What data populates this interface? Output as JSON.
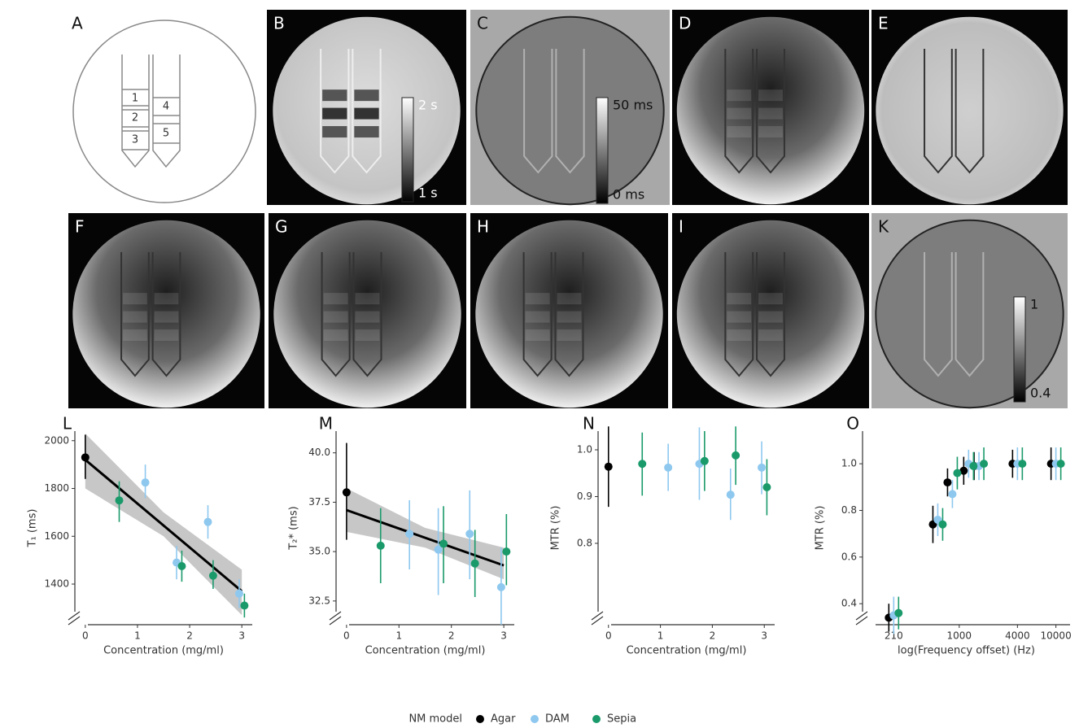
{
  "images": [
    {
      "label": "A"
    },
    {
      "label": "B",
      "colorbar": [
        "2 s",
        "1 s"
      ]
    },
    {
      "label": "C",
      "colorbar": [
        "50 ms",
        "0 ms"
      ]
    },
    {
      "label": "D"
    },
    {
      "label": "E"
    },
    {
      "label": "F"
    },
    {
      "label": "G"
    },
    {
      "label": "H"
    },
    {
      "label": "I"
    },
    {
      "label": "K",
      "colorbar": [
        "1",
        "0.4"
      ]
    }
  ],
  "diagram": {
    "tube_labels": [
      "1",
      "2",
      "3",
      "4",
      "5"
    ]
  },
  "legend": {
    "title": "NM model"
  },
  "chart_data": [
    {
      "type": "scatter",
      "panel": "L",
      "x_label": "Concentration (mg/ml)",
      "y_label": "T₁ (ms)",
      "xlim": [
        -0.2,
        3.2
      ],
      "ylim": [
        1230,
        2040
      ],
      "xticks": [
        0,
        1,
        2,
        3
      ],
      "yticks": [
        1400,
        1600,
        1800,
        2000
      ],
      "series": [
        {
          "name": "Agar",
          "color": "#000000",
          "x": [
            0
          ],
          "values": [
            1930
          ],
          "lower": [
            1840
          ],
          "upper": [
            2025
          ]
        },
        {
          "name": "DAM",
          "color": "#8ec8ef",
          "x": [
            1.15,
            1.75,
            2.35,
            2.95
          ],
          "values": [
            1825,
            1490,
            1660,
            1360
          ],
          "lower": [
            1760,
            1420,
            1590,
            1300
          ],
          "upper": [
            1900,
            1560,
            1730,
            1420
          ]
        },
        {
          "name": "Sepia",
          "color": "#1a9a6b",
          "x": [
            0.65,
            1.85,
            2.45,
            3.05
          ],
          "values": [
            1750,
            1475,
            1435,
            1310
          ],
          "lower": [
            1660,
            1410,
            1380,
            1260
          ],
          "upper": [
            1830,
            1540,
            1500,
            1360
          ]
        }
      ],
      "fit": {
        "x": [
          0,
          3
        ],
        "values": [
          1920,
          1370
        ]
      },
      "band": {
        "x": [
          0,
          1.5,
          3
        ],
        "lower": [
          1800,
          1600,
          1270
        ],
        "upper": [
          2030,
          1700,
          1460
        ]
      }
    },
    {
      "type": "scatter",
      "panel": "M",
      "x_label": "Concentration (mg/ml)",
      "y_label": "T₂* (ms)",
      "xlim": [
        -0.2,
        3.2
      ],
      "ylim": [
        31.3,
        41.1
      ],
      "xticks": [
        0,
        1,
        2,
        3
      ],
      "yticks": [
        32.5,
        {
          "value": 35,
          "label": "35.0"
        },
        37.5,
        {
          "value": 40,
          "label": "40.0"
        }
      ],
      "series": [
        {
          "name": "Agar",
          "color": "#000000",
          "x": [
            0
          ],
          "values": [
            38.0
          ],
          "lower": [
            35.6
          ],
          "upper": [
            40.5
          ]
        },
        {
          "name": "DAM",
          "color": "#8ec8ef",
          "x": [
            1.2,
            1.75,
            2.35,
            2.95
          ],
          "values": [
            35.9,
            35.1,
            35.9,
            33.2
          ],
          "lower": [
            34.1,
            32.8,
            33.6,
            31.3
          ],
          "upper": [
            37.6,
            37.2,
            38.1,
            35.2
          ]
        },
        {
          "name": "Sepia",
          "color": "#1a9a6b",
          "x": [
            0.65,
            1.85,
            2.45,
            3.05
          ],
          "values": [
            35.3,
            35.4,
            34.4,
            35.0
          ],
          "lower": [
            33.4,
            33.4,
            32.7,
            33.3
          ],
          "upper": [
            37.2,
            37.3,
            36.1,
            36.9
          ]
        }
      ],
      "fit": {
        "x": [
          0,
          3
        ],
        "values": [
          37.1,
          34.3
        ]
      },
      "band": {
        "x": [
          0,
          1.5,
          3
        ],
        "lower": [
          36.0,
          35.2,
          33.6
        ],
        "upper": [
          38.2,
          36.2,
          35.2
        ]
      }
    },
    {
      "type": "scatter",
      "panel": "N",
      "x_label": "Concentration (mg/ml)",
      "y_label": "MTR (%)",
      "xlim": [
        -0.2,
        3.2
      ],
      "ylim": [
        0.626,
        1.04
      ],
      "xticks": [
        0,
        1,
        2,
        3
      ],
      "yticks": [
        0.8,
        0.9,
        {
          "value": 1,
          "label": "1.0"
        }
      ],
      "series": [
        {
          "name": "Agar",
          "color": "#000000",
          "x": [
            0
          ],
          "values": [
            0.964
          ],
          "lower": [
            0.878
          ],
          "upper": [
            1.05
          ]
        },
        {
          "name": "DAM",
          "color": "#8ec8ef",
          "x": [
            1.15,
            1.75,
            2.35,
            2.95
          ],
          "values": [
            0.962,
            0.97,
            0.904,
            0.962
          ],
          "lower": [
            0.912,
            0.893,
            0.85,
            0.905
          ],
          "upper": [
            1.013,
            1.048,
            0.96,
            1.018
          ]
        },
        {
          "name": "Sepia",
          "color": "#1a9a6b",
          "x": [
            0.65,
            1.85,
            2.45,
            3.05
          ],
          "values": [
            0.97,
            0.976,
            0.988,
            0.92
          ],
          "lower": [
            0.902,
            0.912,
            0.925,
            0.86
          ],
          "upper": [
            1.037,
            1.04,
            1.05,
            0.98
          ]
        }
      ]
    },
    {
      "type": "scatter",
      "panel": "O",
      "x_label": "log(Frequency offset) (Hz)",
      "y_label": "MTR (%)",
      "xlog": true,
      "xlim": [
        100,
        14000
      ],
      "ylim": [
        0.31,
        1.14
      ],
      "xticks": [
        210,
        1000,
        4000,
        10000
      ],
      "yticks": [
        0.4,
        0.6,
        0.8,
        {
          "value": 1,
          "label": "1.0"
        }
      ],
      "series": [
        {
          "name": "Agar",
          "color": "#000000",
          "x": [
            210,
            600,
            850,
            1250,
            1600,
            4000,
            10000
          ],
          "values": [
            0.34,
            0.74,
            0.92,
            0.97,
            0.99,
            1.0,
            1.0
          ],
          "lower": [
            0.28,
            0.66,
            0.86,
            0.91,
            0.93,
            0.94,
            0.93
          ],
          "upper": [
            0.4,
            0.82,
            0.98,
            1.03,
            1.05,
            1.06,
            1.07
          ]
        },
        {
          "name": "DAM",
          "color": "#8ec8ef",
          "x": [
            210,
            600,
            850,
            1250,
            1600,
            4000,
            10000
          ],
          "values": [
            0.35,
            0.76,
            0.87,
            1.0,
            0.99,
            1.0,
            1.0
          ],
          "lower": [
            0.27,
            0.69,
            0.81,
            0.94,
            0.93,
            0.93,
            0.93
          ],
          "upper": [
            0.43,
            0.83,
            0.93,
            1.06,
            1.05,
            1.07,
            1.07
          ]
        },
        {
          "name": "Sepia",
          "color": "#1a9a6b",
          "x": [
            210,
            600,
            850,
            1250,
            1600,
            4000,
            10000
          ],
          "values": [
            0.36,
            0.74,
            0.96,
            0.99,
            1.0,
            1.0,
            1.0
          ],
          "lower": [
            0.29,
            0.67,
            0.89,
            0.93,
            0.93,
            0.93,
            0.93
          ],
          "upper": [
            0.43,
            0.81,
            1.03,
            1.05,
            1.07,
            1.07,
            1.07
          ]
        }
      ]
    }
  ]
}
